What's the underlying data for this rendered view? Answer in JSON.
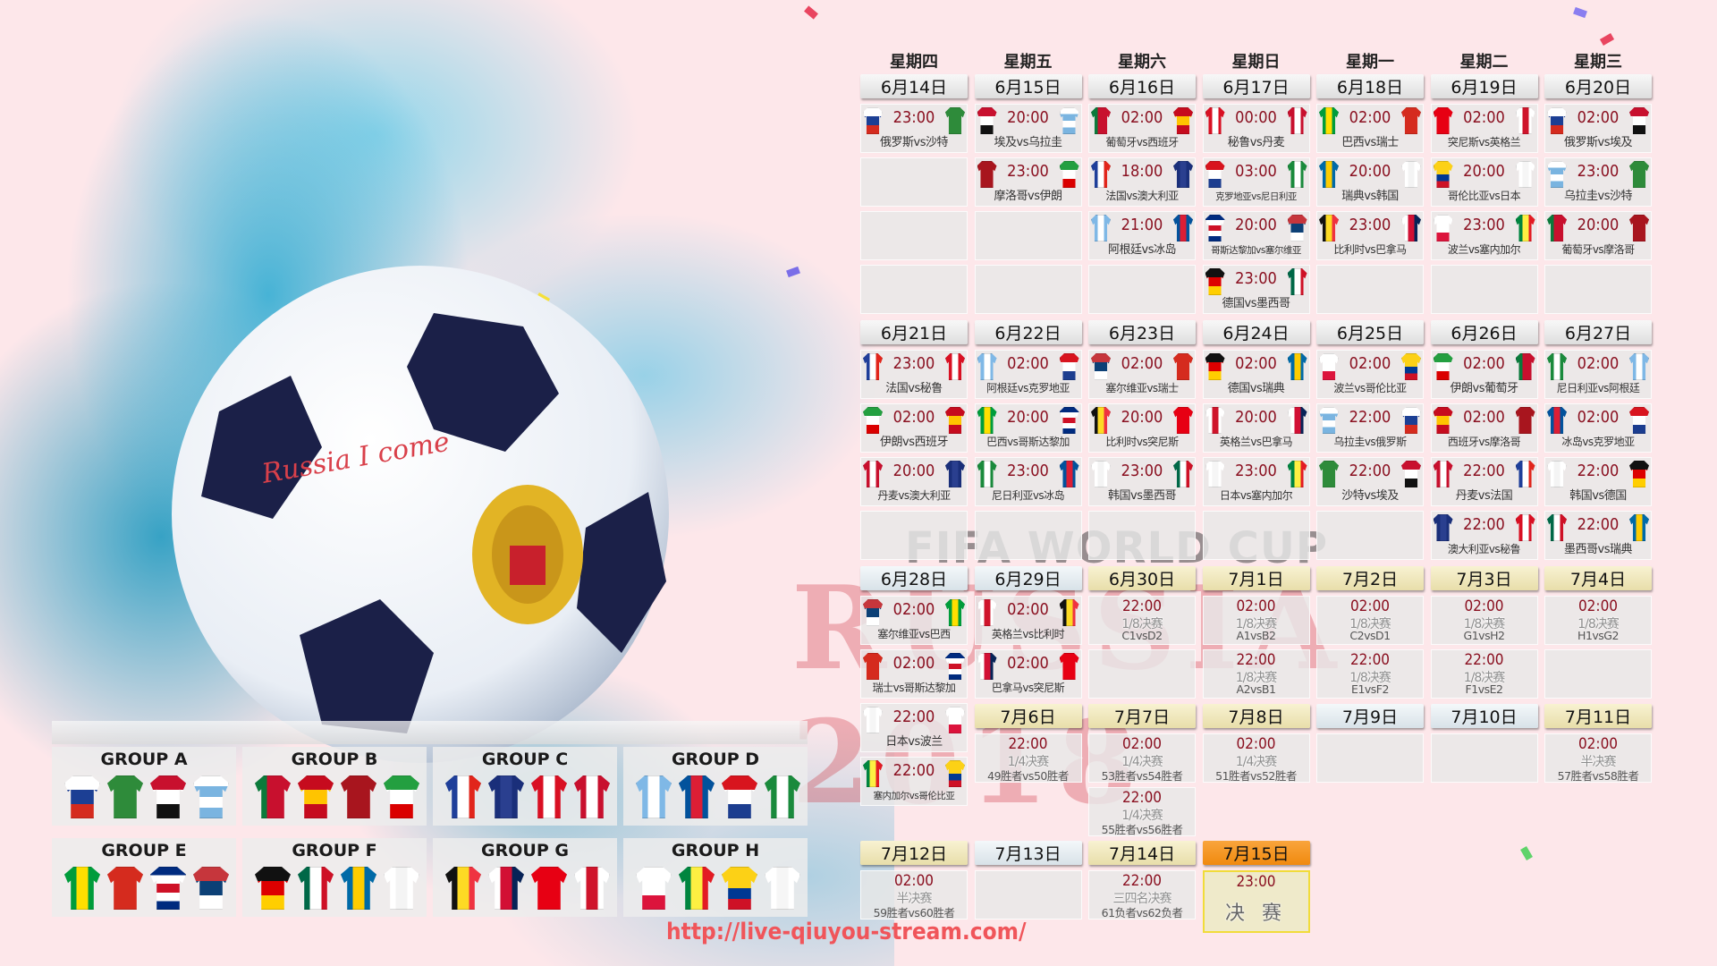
{
  "branding": {
    "ball_text": "Russia I come",
    "watermark_top": "FIFA WORLD CUP",
    "watermark_main": "RUSSIA 2018",
    "url": "http://live-qiuyou-stream.com/"
  },
  "colors": {
    "time": "#8a1020",
    "header_group": "#e6e6e6",
    "header_knockout": "#f1ebc4",
    "header_plain": "#e4ecf0",
    "header_final": "#f7941d"
  },
  "kits": {
    "俄罗斯": [
      "h",
      "#ffffff",
      "#1c3f94",
      "#d52b1e"
    ],
    "沙特": [
      "v",
      "#2e8b3a",
      "#2e8b3a",
      "#2e8b3a"
    ],
    "埃及": [
      "h",
      "#c8102e",
      "#ffffff",
      "#111111"
    ],
    "乌拉圭": [
      "h",
      "#ffffff",
      "#7ab4e0",
      "#ffffff",
      "#7ab4e0"
    ],
    "葡萄牙": [
      "v",
      "#0b7a3b",
      "#c8102e",
      "#c8102e"
    ],
    "西班牙": [
      "h",
      "#c60b1e",
      "#ffc400",
      "#c60b1e"
    ],
    "摩洛哥": [
      "v",
      "#a8151e",
      "#a8151e",
      "#a8151e"
    ],
    "伊朗": [
      "h",
      "#239f40",
      "#ffffff",
      "#da0000"
    ],
    "法国": [
      "v",
      "#1f3f9a",
      "#ffffff",
      "#e1251b"
    ],
    "澳大利亚": [
      "v",
      "#1a2f7a",
      "#2a3f8f",
      "#1a2f7a"
    ],
    "秘鲁": [
      "v",
      "#d91023",
      "#ffffff",
      "#d91023"
    ],
    "丹麦": [
      "v",
      "#c8102e",
      "#ffffff",
      "#c8102e"
    ],
    "阿根廷": [
      "v",
      "#7fb8e6",
      "#ffffff",
      "#7fb8e6"
    ],
    "冰岛": [
      "v",
      "#02529c",
      "#dc1e35",
      "#02529c"
    ],
    "克罗地亚": [
      "h",
      "#d8141e",
      "#ffffff",
      "#1c3d8f"
    ],
    "尼日利亚": [
      "v",
      "#1a8a3c",
      "#ffffff",
      "#1a8a3c"
    ],
    "巴西": [
      "v",
      "#009c3b",
      "#ffdf00",
      "#009c3b"
    ],
    "瑞士": [
      "v",
      "#d52b1e",
      "#d52b1e",
      "#d52b1e"
    ],
    "哥斯达黎加": [
      "h",
      "#002b7f",
      "#ffffff",
      "#ce1126",
      "#ffffff",
      "#002b7f"
    ],
    "塞尔维亚": [
      "h",
      "#c6363c",
      "#0c4076",
      "#ffffff"
    ],
    "德国": [
      "h",
      "#111111",
      "#dd0000",
      "#ffce00"
    ],
    "墨西哥": [
      "v",
      "#006847",
      "#ffffff",
      "#ce1126"
    ],
    "瑞典": [
      "v",
      "#006aa7",
      "#fecc00",
      "#006aa7"
    ],
    "韩国": [
      "v",
      "#ffffff",
      "#f4f4f4",
      "#ffffff"
    ],
    "比利时": [
      "v",
      "#111111",
      "#fdda24",
      "#ef3340"
    ],
    "巴拿马": [
      "v",
      "#ffffff",
      "#d21034",
      "#072357"
    ],
    "突尼斯": [
      "v",
      "#e70013",
      "#e70013",
      "#e70013"
    ],
    "英格兰": [
      "v",
      "#ffffff",
      "#cf142b",
      "#ffffff"
    ],
    "波兰": [
      "h",
      "#ffffff",
      "#ffffff",
      "#dc143c"
    ],
    "塞内加尔": [
      "v",
      "#00853f",
      "#fdef42",
      "#e31b23"
    ],
    "哥伦比亚": [
      "h",
      "#fcd116",
      "#fcd116",
      "#003893",
      "#ce1126"
    ],
    "日本": [
      "v",
      "#ffffff",
      "#f6f6f6",
      "#ffffff"
    ]
  },
  "groups": [
    {
      "title": "GROUP A",
      "teams": [
        "俄罗斯",
        "沙特",
        "埃及",
        "乌拉圭"
      ]
    },
    {
      "title": "GROUP B",
      "teams": [
        "葡萄牙",
        "西班牙",
        "摩洛哥",
        "伊朗"
      ]
    },
    {
      "title": "GROUP C",
      "teams": [
        "法国",
        "澳大利亚",
        "秘鲁",
        "丹麦"
      ]
    },
    {
      "title": "GROUP D",
      "teams": [
        "阿根廷",
        "冰岛",
        "克罗地亚",
        "尼日利亚"
      ]
    },
    {
      "title": "GROUP E",
      "teams": [
        "巴西",
        "瑞士",
        "哥斯达黎加",
        "塞尔维亚"
      ]
    },
    {
      "title": "GROUP F",
      "teams": [
        "德国",
        "墨西哥",
        "瑞典",
        "韩国"
      ]
    },
    {
      "title": "GROUP G",
      "teams": [
        "比利时",
        "巴拿马",
        "突尼斯",
        "英格兰"
      ]
    },
    {
      "title": "GROUP H",
      "teams": [
        "波兰",
        "塞内加尔",
        "哥伦比亚",
        "日本"
      ]
    }
  ],
  "schedule": {
    "weekdays": [
      "星期四",
      "星期五",
      "星期六",
      "星期日",
      "星期一",
      "星期二",
      "星期三"
    ],
    "days": [
      {
        "date": "6月14日",
        "header": "group",
        "matches": [
          {
            "time": "23:00",
            "home": "俄罗斯",
            "away": "沙特",
            "label": "俄罗斯vs沙特"
          }
        ]
      },
      {
        "date": "6月15日",
        "header": "group",
        "matches": [
          {
            "time": "20:00",
            "home": "埃及",
            "away": "乌拉圭",
            "label": "埃及vs乌拉圭"
          },
          {
            "time": "23:00",
            "home": "摩洛哥",
            "away": "伊朗",
            "label": "摩洛哥vs伊朗"
          }
        ]
      },
      {
        "date": "6月16日",
        "header": "group",
        "matches": [
          {
            "time": "02:00",
            "home": "葡萄牙",
            "away": "西班牙",
            "label": "葡萄牙vs西班牙"
          },
          {
            "time": "18:00",
            "home": "法国",
            "away": "澳大利亚",
            "label": "法国vs澳大利亚"
          },
          {
            "time": "21:00",
            "home": "阿根廷",
            "away": "冰岛",
            "label": "阿根廷vs冰岛"
          }
        ]
      },
      {
        "date": "6月17日",
        "header": "group",
        "matches": [
          {
            "time": "00:00",
            "home": "秘鲁",
            "away": "丹麦",
            "label": "秘鲁vs丹麦"
          },
          {
            "time": "03:00",
            "home": "克罗地亚",
            "away": "尼日利亚",
            "label": "克罗地亚vs尼日利亚"
          },
          {
            "time": "20:00",
            "home": "哥斯达黎加",
            "away": "塞尔维亚",
            "label": "哥斯达黎加vs塞尔维亚"
          },
          {
            "time": "23:00",
            "home": "德国",
            "away": "墨西哥",
            "label": "德国vs墨西哥"
          }
        ]
      },
      {
        "date": "6月18日",
        "header": "group",
        "matches": [
          {
            "time": "02:00",
            "home": "巴西",
            "away": "瑞士",
            "label": "巴西vs瑞士"
          },
          {
            "time": "20:00",
            "home": "瑞典",
            "away": "韩国",
            "label": "瑞典vs韩国"
          },
          {
            "time": "23:00",
            "home": "比利时",
            "away": "巴拿马",
            "label": "比利时vs巴拿马"
          }
        ]
      },
      {
        "date": "6月19日",
        "header": "group",
        "matches": [
          {
            "time": "02:00",
            "home": "突尼斯",
            "away": "英格兰",
            "label": "突尼斯vs英格兰"
          },
          {
            "time": "20:00",
            "home": "哥伦比亚",
            "away": "日本",
            "label": "哥伦比亚vs日本"
          },
          {
            "time": "23:00",
            "home": "波兰",
            "away": "塞内加尔",
            "label": "波兰vs塞内加尔"
          }
        ]
      },
      {
        "date": "6月20日",
        "header": "group",
        "matches": [
          {
            "time": "02:00",
            "home": "俄罗斯",
            "away": "埃及",
            "label": "俄罗斯vs埃及"
          },
          {
            "time": "23:00",
            "home": "乌拉圭",
            "away": "沙特",
            "label": "乌拉圭vs沙特"
          },
          {
            "time": "20:00",
            "home": "葡萄牙",
            "away": "摩洛哥",
            "label": "葡萄牙vs摩洛哥"
          }
        ]
      },
      {
        "date": "6月21日",
        "header": "group",
        "matches": [
          {
            "time": "23:00",
            "home": "法国",
            "away": "秘鲁",
            "label": "法国vs秘鲁"
          },
          {
            "time": "02:00",
            "home": "伊朗",
            "away": "西班牙",
            "label": "伊朗vs西班牙"
          },
          {
            "time": "20:00",
            "home": "丹麦",
            "away": "澳大利亚",
            "label": "丹麦vs澳大利亚"
          }
        ]
      },
      {
        "date": "6月22日",
        "header": "group",
        "matches": [
          {
            "time": "02:00",
            "home": "阿根廷",
            "away": "克罗地亚",
            "label": "阿根廷vs克罗地亚"
          },
          {
            "time": "20:00",
            "home": "巴西",
            "away": "哥斯达黎加",
            "label": "巴西vs哥斯达黎加"
          },
          {
            "time": "23:00",
            "home": "尼日利亚",
            "away": "冰岛",
            "label": "尼日利亚vs冰岛"
          }
        ]
      },
      {
        "date": "6月23日",
        "header": "group",
        "matches": [
          {
            "time": "02:00",
            "home": "塞尔维亚",
            "away": "瑞士",
            "label": "塞尔维亚vs瑞士"
          },
          {
            "time": "20:00",
            "home": "比利时",
            "away": "突尼斯",
            "label": "比利时vs突尼斯"
          },
          {
            "time": "23:00",
            "home": "韩国",
            "away": "墨西哥",
            "label": "韩国vs墨西哥"
          }
        ]
      },
      {
        "date": "6月24日",
        "header": "group",
        "matches": [
          {
            "time": "02:00",
            "home": "德国",
            "away": "瑞典",
            "label": "德国vs瑞典"
          },
          {
            "time": "20:00",
            "home": "英格兰",
            "away": "巴拿马",
            "label": "英格兰vs巴拿马"
          },
          {
            "time": "23:00",
            "home": "日本",
            "away": "塞内加尔",
            "label": "日本vs塞内加尔"
          }
        ]
      },
      {
        "date": "6月25日",
        "header": "group",
        "matches": [
          {
            "time": "02:00",
            "home": "波兰",
            "away": "哥伦比亚",
            "label": "波兰vs哥伦比亚"
          },
          {
            "time": "22:00",
            "home": "乌拉圭",
            "away": "俄罗斯",
            "label": "乌拉圭vs俄罗斯"
          },
          {
            "time": "22:00",
            "home": "沙特",
            "away": "埃及",
            "label": "沙特vs埃及"
          }
        ]
      },
      {
        "date": "6月26日",
        "header": "group",
        "matches": [
          {
            "time": "02:00",
            "home": "伊朗",
            "away": "葡萄牙",
            "label": "伊朗vs葡萄牙"
          },
          {
            "time": "02:00",
            "home": "西班牙",
            "away": "摩洛哥",
            "label": "西班牙vs摩洛哥"
          },
          {
            "time": "22:00",
            "home": "丹麦",
            "away": "法国",
            "label": "丹麦vs法国"
          },
          {
            "time": "22:00",
            "home": "澳大利亚",
            "away": "秘鲁",
            "label": "澳大利亚vs秘鲁"
          }
        ]
      },
      {
        "date": "6月27日",
        "header": "group",
        "matches": [
          {
            "time": "02:00",
            "home": "尼日利亚",
            "away": "阿根廷",
            "label": "尼日利亚vs阿根廷"
          },
          {
            "time": "02:00",
            "home": "冰岛",
            "away": "克罗地亚",
            "label": "冰岛vs克罗地亚"
          },
          {
            "time": "22:00",
            "home": "韩国",
            "away": "德国",
            "label": "韩国vs德国"
          },
          {
            "time": "22:00",
            "home": "墨西哥",
            "away": "瑞典",
            "label": "墨西哥vs瑞典"
          }
        ]
      },
      {
        "date": "6月28日",
        "header": "plain",
        "matches": [
          {
            "time": "02:00",
            "home": "塞尔维亚",
            "away": "巴西",
            "label": "塞尔维亚vs巴西"
          },
          {
            "time": "02:00",
            "home": "瑞士",
            "away": "哥斯达黎加",
            "label": "瑞士vs哥斯达黎加"
          },
          {
            "time": "22:00",
            "home": "日本",
            "away": "波兰",
            "label": "日本vs波兰"
          },
          {
            "time": "22:00",
            "home": "塞内加尔",
            "away": "哥伦比亚",
            "label": "塞内加尔vs哥伦比亚"
          }
        ]
      },
      {
        "date": "6月29日",
        "header": "plain",
        "matches": [
          {
            "time": "02:00",
            "home": "英格兰",
            "away": "比利时",
            "label": "英格兰vs比利时"
          },
          {
            "time": "02:00",
            "home": "巴拿马",
            "away": "突尼斯",
            "label": "巴拿马vs突尼斯"
          }
        ]
      },
      {
        "date": "6月30日",
        "header": "knockout",
        "matches": [
          {
            "time": "22:00",
            "stage": "1/8决赛",
            "pairing": "C1vsD2"
          }
        ]
      },
      {
        "date": "7月1日",
        "header": "knockout",
        "matches": [
          {
            "time": "02:00",
            "stage": "1/8决赛",
            "pairing": "A1vsB2"
          },
          {
            "time": "22:00",
            "stage": "1/8决赛",
            "pairing": "A2vsB1"
          }
        ]
      },
      {
        "date": "7月2日",
        "header": "knockout",
        "matches": [
          {
            "time": "02:00",
            "stage": "1/8决赛",
            "pairing": "C2vsD1"
          },
          {
            "time": "22:00",
            "stage": "1/8决赛",
            "pairing": "E1vsF2"
          }
        ]
      },
      {
        "date": "7月3日",
        "header": "knockout",
        "matches": [
          {
            "time": "02:00",
            "stage": "1/8决赛",
            "pairing": "G1vsH2"
          },
          {
            "time": "22:00",
            "stage": "1/8决赛",
            "pairing": "F1vsE2"
          }
        ]
      },
      {
        "date": "7月4日",
        "header": "knockout",
        "matches": [
          {
            "time": "02:00",
            "stage": "1/8决赛",
            "pairing": "H1vsG2"
          }
        ]
      },
      {
        "date": "7月6日",
        "header": "knockout",
        "matches": [
          {
            "time": "22:00",
            "stage": "1/4决赛",
            "pairing": "49胜者vs50胜者"
          }
        ]
      },
      {
        "date": "7月7日",
        "header": "knockout",
        "matches": [
          {
            "time": "02:00",
            "stage": "1/4决赛",
            "pairing": "53胜者vs54胜者"
          },
          {
            "time": "22:00",
            "stage": "1/4决赛",
            "pairing": "55胜者vs56胜者"
          }
        ]
      },
      {
        "date": "7月8日",
        "header": "knockout",
        "matches": [
          {
            "time": "02:00",
            "stage": "1/4决赛",
            "pairing": "51胜者vs52胜者"
          }
        ]
      },
      {
        "date": "7月9日",
        "header": "plain",
        "matches": []
      },
      {
        "date": "7月10日",
        "header": "plain",
        "matches": []
      },
      {
        "date": "7月11日",
        "header": "knockout",
        "matches": [
          {
            "time": "02:00",
            "stage": "半决赛",
            "pairing": "57胜者vs58胜者"
          }
        ]
      },
      {
        "date": "7月12日",
        "header": "knockout",
        "matches": [
          {
            "time": "02:00",
            "stage": "半决赛",
            "pairing": "59胜者vs60胜者"
          }
        ]
      },
      {
        "date": "7月13日",
        "header": "plain",
        "matches": []
      },
      {
        "date": "7月14日",
        "header": "knockout",
        "matches": [
          {
            "time": "22:00",
            "stage": "三四名决赛",
            "pairing": "61负者vs62负者"
          }
        ]
      },
      {
        "date": "7月15日",
        "header": "final",
        "matches": [
          {
            "time": "23:00",
            "stage": "决 赛",
            "final": true
          }
        ]
      }
    ]
  }
}
